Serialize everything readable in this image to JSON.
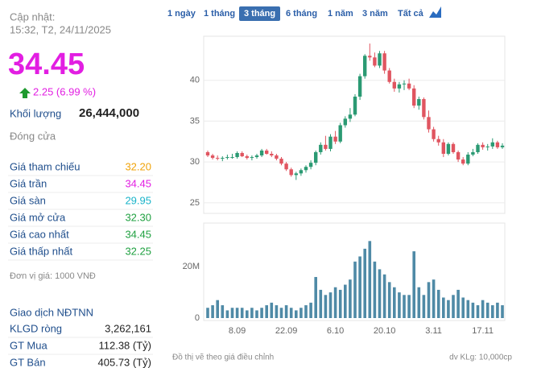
{
  "header": {
    "updated_label": "Cập nhật:",
    "updated_time": "15:32, T2, 24/11/2025",
    "price": "34.45",
    "change": "2.25 (6.99 %)",
    "volume_label": "Khối lượng",
    "volume": "26,444,000",
    "status": "Đóng cửa"
  },
  "price_table": {
    "rows": [
      [
        "Giá tham chiếu",
        "32.20"
      ],
      [
        "Giá trần",
        "34.45"
      ],
      [
        "Giá sàn",
        "29.95"
      ],
      [
        "Giá mở cửa",
        "32.30"
      ],
      [
        "Giá cao nhất",
        "34.45"
      ],
      [
        "Giá thấp nhất",
        "32.25"
      ]
    ]
  },
  "unit_note": "Đơn vị giá: 1000 VNĐ",
  "foreign": {
    "title": "Giao dịch NĐTNN",
    "rows": [
      [
        "KLGD ròng",
        "3,262,161"
      ],
      [
        "GT Mua",
        "112.38 (Tỷ)"
      ],
      [
        "GT Bán",
        "405.73 (Tỷ)"
      ]
    ]
  },
  "range_tabs": {
    "items": [
      "1 ngày",
      "1 tháng",
      "3 tháng",
      "6 tháng",
      "1 năm",
      "3 năm",
      "Tất cả"
    ],
    "active": 2
  },
  "chart_data": [
    {
      "type": "candlestick",
      "up_color": "#2b9a73",
      "down_color": "#e05560",
      "grid": true,
      "categories": [
        null,
        null,
        null,
        null,
        null,
        null,
        "8.09",
        null,
        null,
        null,
        null,
        null,
        null,
        null,
        null,
        null,
        "22.09",
        null,
        null,
        null,
        null,
        null,
        null,
        null,
        null,
        null,
        "6.10",
        null,
        null,
        null,
        null,
        null,
        null,
        null,
        null,
        null,
        "20.10",
        null,
        null,
        null,
        null,
        null,
        null,
        null,
        null,
        null,
        "3.11",
        null,
        null,
        null,
        null,
        null,
        null,
        null,
        null,
        null,
        "17.11",
        null,
        null,
        null,
        null
      ],
      "open": [
        31.2,
        30.8,
        30.5,
        30.4,
        30.5,
        30.6,
        30.6,
        31.1,
        30.7,
        30.5,
        30.6,
        30.8,
        31.4,
        31.0,
        30.8,
        30.4,
        29.8,
        29.1,
        28.4,
        28.6,
        29.0,
        29.4,
        29.9,
        31.2,
        32.1,
        31.6,
        33.1,
        32.5,
        34.5,
        35.3,
        35.8,
        38.0,
        40.5,
        43.0,
        42.8,
        41.8,
        43.3,
        41.2,
        39.8,
        39.0,
        39.5,
        39.6,
        39.0,
        36.9,
        37.7,
        35.5,
        34.0,
        32.8,
        32.4,
        31.0,
        32.2,
        31.2,
        30.3,
        29.8,
        30.9,
        31.2,
        32.1,
        31.8,
        31.9,
        32.4,
        31.8
      ],
      "high": [
        31.4,
        31.0,
        30.8,
        30.7,
        30.9,
        31.0,
        31.3,
        31.3,
        30.9,
        30.8,
        31.0,
        31.6,
        31.6,
        31.3,
        31.0,
        30.6,
        30.0,
        29.3,
        28.8,
        29.2,
        29.6,
        30.2,
        31.4,
        32.4,
        33.2,
        33.4,
        33.8,
        34.8,
        35.6,
        36.6,
        38.3,
        40.8,
        43.2,
        44.5,
        43.4,
        43.6,
        43.6,
        41.5,
        40.2,
        39.8,
        40.0,
        40.2,
        39.4,
        38.0,
        37.9,
        36.3,
        34.3,
        33.2,
        32.8,
        32.4,
        32.4,
        31.4,
        30.6,
        31.2,
        31.6,
        32.3,
        32.4,
        32.2,
        32.9,
        32.6,
        32.3
      ],
      "low": [
        30.6,
        30.3,
        30.2,
        30.1,
        30.3,
        30.4,
        30.4,
        30.6,
        30.3,
        30.2,
        30.4,
        30.6,
        30.9,
        30.6,
        30.2,
        29.6,
        28.9,
        28.2,
        27.8,
        28.3,
        28.7,
        29.1,
        29.6,
        30.9,
        31.4,
        31.3,
        32.2,
        32.3,
        34.2,
        34.9,
        35.6,
        37.6,
        40.2,
        42.4,
        41.6,
        41.5,
        40.8,
        39.6,
        38.6,
        38.5,
        38.8,
        38.8,
        36.6,
        36.4,
        35.2,
        33.6,
        32.5,
        32.0,
        30.6,
        30.8,
        31.0,
        30.0,
        29.6,
        29.6,
        30.7,
        31.0,
        31.5,
        31.4,
        31.6,
        31.6,
        31.6
      ],
      "close": [
        30.8,
        30.5,
        30.4,
        30.5,
        30.6,
        30.6,
        31.1,
        30.7,
        30.5,
        30.6,
        30.8,
        31.4,
        31.0,
        30.8,
        30.4,
        29.8,
        29.1,
        28.4,
        28.6,
        29.0,
        29.4,
        29.9,
        31.2,
        32.1,
        31.6,
        33.1,
        32.5,
        34.5,
        35.3,
        35.8,
        38.0,
        40.5,
        43.0,
        42.8,
        41.8,
        43.3,
        41.2,
        39.8,
        39.0,
        39.5,
        39.6,
        39.0,
        36.9,
        37.7,
        35.5,
        34.0,
        32.8,
        32.4,
        31.0,
        32.2,
        31.2,
        30.3,
        29.8,
        30.9,
        31.2,
        32.1,
        31.8,
        31.9,
        32.4,
        31.8,
        32.0
      ],
      "ylim": [
        24,
        45
      ],
      "yticks": [
        25,
        30,
        35,
        40
      ]
    },
    {
      "type": "bar",
      "color": "#4f8aa6",
      "grid": false,
      "values": [
        4000000,
        5000000,
        7000000,
        5000000,
        3000000,
        4000000,
        4000000,
        4000000,
        3000000,
        4000000,
        3000000,
        4000000,
        5000000,
        6000000,
        5000000,
        4000000,
        5000000,
        4000000,
        3000000,
        4000000,
        5000000,
        6000000,
        16000000,
        11000000,
        9000000,
        10000000,
        12000000,
        11000000,
        13000000,
        15000000,
        22000000,
        24000000,
        27000000,
        30000000,
        22000000,
        19000000,
        17000000,
        14000000,
        12000000,
        10000000,
        9000000,
        9000000,
        26000000,
        12000000,
        9000000,
        14000000,
        15000000,
        11000000,
        8000000,
        7000000,
        9000000,
        11000000,
        8000000,
        7000000,
        6000000,
        5000000,
        7000000,
        6000000,
        5000000,
        6000000,
        5000000
      ],
      "ylim": [
        0,
        37000000
      ],
      "yticks": [
        0,
        {
          "value": 20000000,
          "label": "20M"
        }
      ]
    }
  ],
  "footnote_left": "Đồ thị vẽ theo giá điều chỉnh",
  "footnote_right": "dv KLg: 10,000cp"
}
